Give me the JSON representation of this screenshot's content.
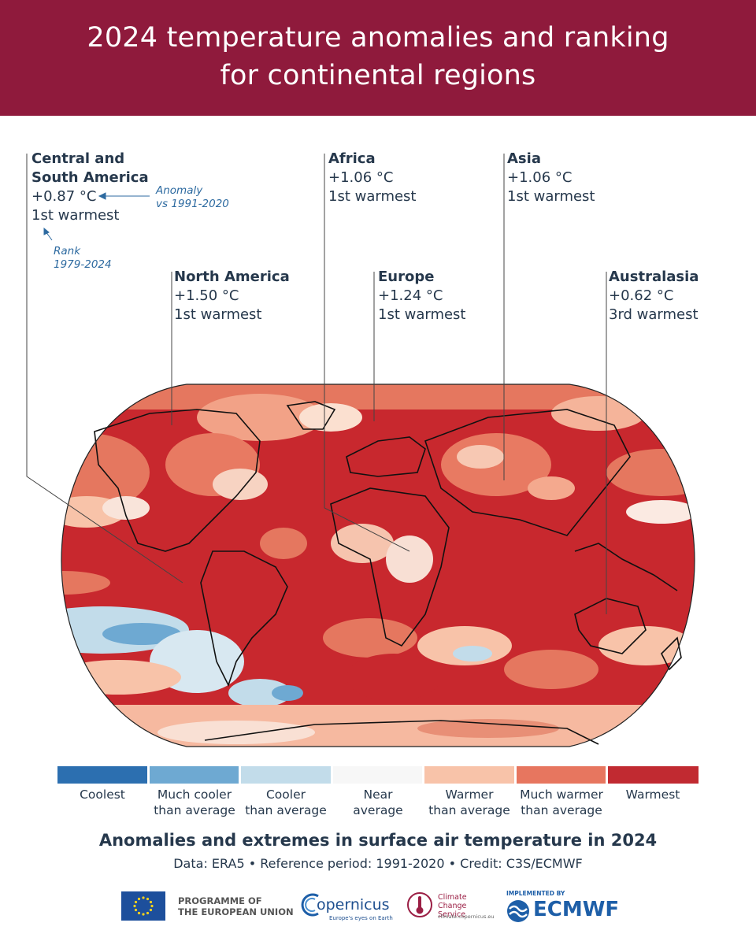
{
  "header": {
    "title_line1": "2024 temperature anomalies and ranking",
    "title_line2": "for continental regions"
  },
  "regions": [
    {
      "name_line1": "Central and",
      "name_line2": "South America",
      "anomaly": "+0.87 °C",
      "rank": "1st warmest"
    },
    {
      "name": "North America",
      "anomaly": "+1.50 °C",
      "rank": "1st warmest"
    },
    {
      "name": "Africa",
      "anomaly": "+1.06 °C",
      "rank": "1st warmest"
    },
    {
      "name": "Europe",
      "anomaly": "+1.24 °C",
      "rank": "1st warmest"
    },
    {
      "name": "Asia",
      "anomaly": "+1.06 °C",
      "rank": "1st warmest"
    },
    {
      "name": "Australasia",
      "anomaly": "+0.62 °C",
      "rank": "3rd warmest"
    }
  ],
  "annotations": {
    "anomaly_line1": "Anomaly",
    "anomaly_line2": "vs 1991-2020",
    "rank_line1": "Rank",
    "rank_line2": "1979-2024"
  },
  "legend": {
    "items": [
      {
        "label_line1": "Coolest",
        "label_line2": "",
        "color": "#2c6fb0"
      },
      {
        "label_line1": "Much cooler",
        "label_line2": "than average",
        "color": "#6ea9d2"
      },
      {
        "label_line1": "Cooler",
        "label_line2": "than average",
        "color": "#c2dcea"
      },
      {
        "label_line1": "Near",
        "label_line2": "average",
        "color": "#f7f7f7"
      },
      {
        "label_line1": "Warmer",
        "label_line2": "than average",
        "color": "#f8c3a9"
      },
      {
        "label_line1": "Much warmer",
        "label_line2": "than average",
        "color": "#e7765f"
      },
      {
        "label_line1": "Warmest",
        "label_line2": "",
        "color": "#c12a31"
      }
    ]
  },
  "footer": {
    "subtitle": "Anomalies and extremes in surface air temperature in 2024",
    "credit": "Data: ERA5 • Reference period: 1991-2020 • Credit: C3S/ECMWF"
  },
  "logos": {
    "eu_line1": "PROGRAMME OF",
    "eu_line2": "THE EUROPEAN UNION",
    "copernicus": "opernicus",
    "copernicus_tagline": "Europe's eyes on Earth",
    "c3s_line1": "Climate",
    "c3s_line2": "Change Service",
    "c3s_url": "climate.copernicus.eu",
    "ecmwf_top": "IMPLEMENTED BY",
    "ecmwf": "ECMWF"
  },
  "colors": {
    "header_bg": "#8f1a3c",
    "text": "#26384c",
    "annotation_blue": "#2d6aa0",
    "ocean_base": "#c8282e"
  }
}
